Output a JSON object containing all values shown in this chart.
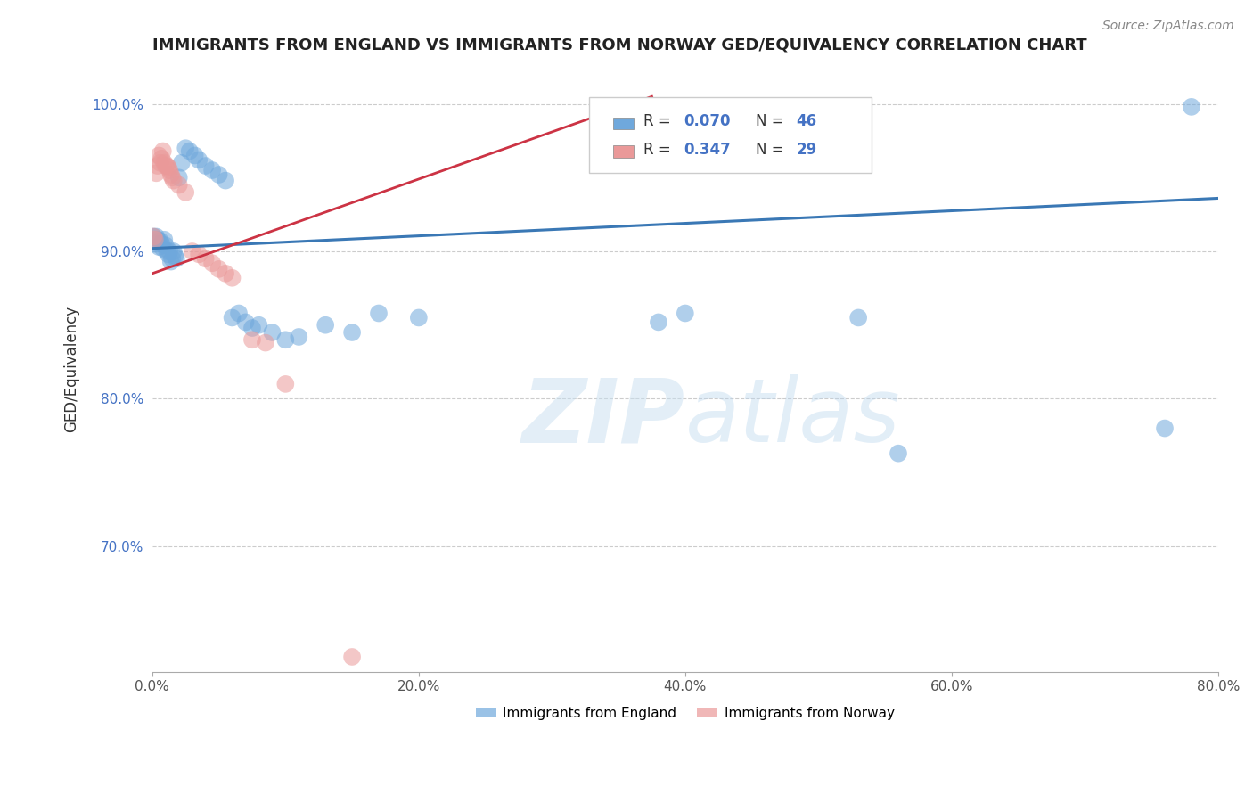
{
  "title": "IMMIGRANTS FROM ENGLAND VS IMMIGRANTS FROM NORWAY GED/EQUIVALENCY CORRELATION CHART",
  "source": "Source: ZipAtlas.com",
  "ylabel_label": "GED/Equivalency",
  "xlim": [
    0.0,
    0.8
  ],
  "ylim": [
    0.615,
    1.025
  ],
  "xtick_labels": [
    "0.0%",
    "20.0%",
    "40.0%",
    "60.0%",
    "80.0%"
  ],
  "xtick_vals": [
    0.0,
    0.2,
    0.4,
    0.6,
    0.8
  ],
  "ytick_labels": [
    "70.0%",
    "80.0%",
    "90.0%",
    "100.0%"
  ],
  "ytick_vals": [
    0.7,
    0.8,
    0.9,
    1.0
  ],
  "england_color": "#6fa8dc",
  "norway_color": "#ea9999",
  "england_R": 0.07,
  "england_N": 46,
  "norway_R": 0.347,
  "norway_N": 29,
  "england_scatter_x": [
    0.001,
    0.002,
    0.003,
    0.004,
    0.005,
    0.006,
    0.007,
    0.008,
    0.009,
    0.01,
    0.011,
    0.012,
    0.013,
    0.014,
    0.015,
    0.016,
    0.017,
    0.018,
    0.02,
    0.022,
    0.025,
    0.028,
    0.032,
    0.035,
    0.04,
    0.045,
    0.05,
    0.055,
    0.06,
    0.065,
    0.07,
    0.075,
    0.08,
    0.09,
    0.1,
    0.11,
    0.13,
    0.15,
    0.17,
    0.2,
    0.38,
    0.4,
    0.53,
    0.56,
    0.76,
    0.78
  ],
  "england_scatter_y": [
    0.91,
    0.905,
    0.91,
    0.908,
    0.903,
    0.907,
    0.905,
    0.902,
    0.908,
    0.904,
    0.9,
    0.898,
    0.9,
    0.893,
    0.895,
    0.9,
    0.897,
    0.895,
    0.95,
    0.96,
    0.97,
    0.968,
    0.965,
    0.962,
    0.958,
    0.955,
    0.952,
    0.948,
    0.855,
    0.858,
    0.852,
    0.848,
    0.85,
    0.845,
    0.84,
    0.842,
    0.85,
    0.845,
    0.858,
    0.855,
    0.852,
    0.858,
    0.855,
    0.763,
    0.78,
    0.998
  ],
  "norway_scatter_x": [
    0.001,
    0.002,
    0.003,
    0.004,
    0.005,
    0.006,
    0.007,
    0.008,
    0.009,
    0.01,
    0.011,
    0.012,
    0.013,
    0.014,
    0.015,
    0.016,
    0.02,
    0.025,
    0.03,
    0.035,
    0.04,
    0.045,
    0.05,
    0.055,
    0.06,
    0.075,
    0.085,
    0.1,
    0.15
  ],
  "norway_scatter_y": [
    0.91,
    0.908,
    0.953,
    0.958,
    0.965,
    0.96,
    0.963,
    0.968,
    0.96,
    0.958,
    0.958,
    0.957,
    0.955,
    0.952,
    0.95,
    0.948,
    0.945,
    0.94,
    0.9,
    0.898,
    0.895,
    0.892,
    0.888,
    0.885,
    0.882,
    0.84,
    0.838,
    0.81,
    0.625
  ],
  "england_trend_x": [
    0.0,
    0.8
  ],
  "england_trend_y": [
    0.902,
    0.936
  ],
  "norway_trend_x": [
    0.0,
    0.375
  ],
  "norway_trend_y": [
    0.885,
    1.005
  ],
  "watermark_zip": "ZIP",
  "watermark_atlas": "atlas",
  "background_color": "#ffffff",
  "grid_color": "#cccccc",
  "legend_entry_1": "Immigrants from England",
  "legend_entry_2": "Immigrants from Norway"
}
